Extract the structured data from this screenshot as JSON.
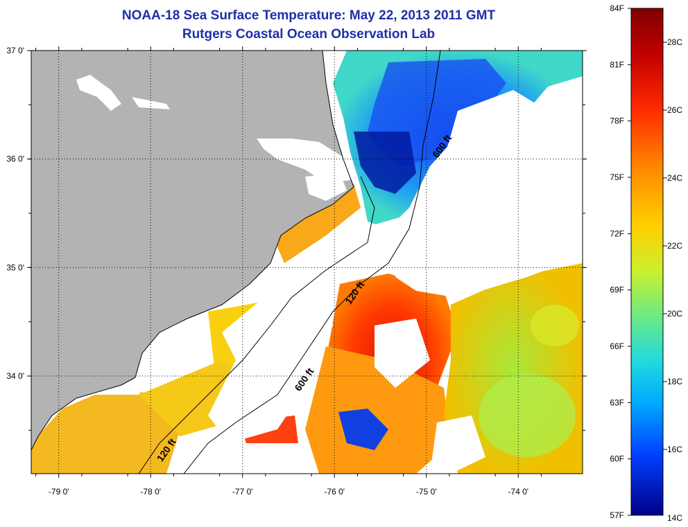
{
  "title": {
    "line1": "NOAA-18 Sea Surface Temperature:  May 22, 2013 2011 GMT",
    "line2": "Rutgers Coastal Ocean Observation Lab"
  },
  "map": {
    "lon_range": [
      -79.3,
      -73.3
    ],
    "lat_range": [
      33.1,
      37.0
    ],
    "lon_ticks": [
      {
        "value": -79,
        "label": "-79 0'"
      },
      {
        "value": -78,
        "label": "-78 0'"
      },
      {
        "value": -77,
        "label": "-77 0'"
      },
      {
        "value": -76,
        "label": "-76 0'"
      },
      {
        "value": -75,
        "label": "-75 0'"
      },
      {
        "value": -74,
        "label": "-74 0'"
      }
    ],
    "lat_ticks": [
      {
        "value": 37,
        "label": "37 0'"
      },
      {
        "value": 36,
        "label": "36 0'"
      },
      {
        "value": 35,
        "label": "35 0'"
      },
      {
        "value": 34,
        "label": "34 0'"
      }
    ],
    "contour_labels": [
      {
        "text": "600 ft",
        "lon": -74.8,
        "lat": 36.1
      },
      {
        "text": "120 ft",
        "lon": -75.75,
        "lat": 34.75
      },
      {
        "text": "600 ft",
        "lon": -76.3,
        "lat": 33.95
      },
      {
        "text": "120 ft",
        "lon": -77.8,
        "lat": 33.3
      }
    ],
    "colors": {
      "land": "#b3b3b3",
      "cloud": "#ffffff"
    }
  },
  "colorbar": {
    "fahrenheit_labels": [
      "84F",
      "81F",
      "78F",
      "75F",
      "72F",
      "69F",
      "66F",
      "63F",
      "60F",
      "57F"
    ],
    "celsius_labels": [
      "28C",
      "26C",
      "24C",
      "22C",
      "20C",
      "18C",
      "16C",
      "14C"
    ],
    "colors": [
      "#800000",
      "#d40000",
      "#ff4000",
      "#ff8c00",
      "#ffd000",
      "#d8f020",
      "#90ee60",
      "#40e0c0",
      "#00c0ff",
      "#0080ff",
      "#0030ff",
      "#000090"
    ]
  }
}
